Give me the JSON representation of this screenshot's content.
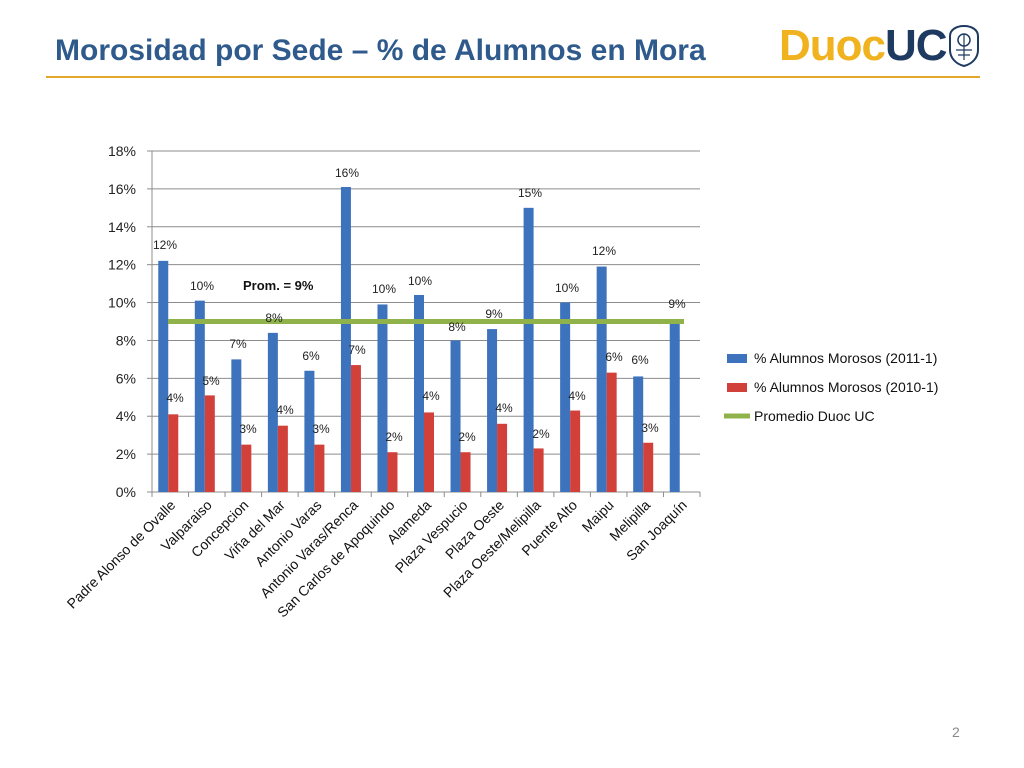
{
  "slide": {
    "title": "Morosidad por Sede – % de Alumnos en Mora",
    "logo_text_a": "Duoc",
    "logo_text_b": "UC",
    "page_number": "2"
  },
  "colors": {
    "title": "#2f5a8c",
    "rule": "#e3a82b",
    "series_2011": "#3d72bc",
    "series_2010": "#d2403a",
    "average": "#8fb34a",
    "logo_yellow": "#f0b21f",
    "logo_navy": "#1f3a60"
  },
  "chart_data": {
    "type": "bar",
    "categories": [
      "Padre Alonso de Ovalle",
      "Valparaiso",
      "Concepcion",
      "Viña del Mar",
      "Antonio Varas",
      "Antonio Varas/Renca",
      "San Carlos de Apoquindo",
      "Alameda",
      "Plaza Vespucio",
      "Plaza Oeste",
      "Plaza Oeste/Melipilla",
      "Puente Alto",
      "Maipu",
      "Melipilla",
      "San Joaquín"
    ],
    "series": [
      {
        "name": "% Alumnos Morosos (2011-1)",
        "values": [
          12.2,
          10.1,
          7.0,
          8.4,
          6.4,
          16.1,
          9.9,
          10.4,
          8.0,
          8.6,
          15.0,
          10.0,
          11.9,
          6.1,
          8.9
        ],
        "labels": [
          "12%",
          "10%",
          "7%",
          "8%",
          "6%",
          "16%",
          "10%",
          "10%",
          "8%",
          "9%",
          "15%",
          "10%",
          "12%",
          "6%",
          "9%"
        ]
      },
      {
        "name": "% Alumnos Morosos (2010-1)",
        "values": [
          4.1,
          5.1,
          2.5,
          3.5,
          2.5,
          6.7,
          2.1,
          4.2,
          2.1,
          3.6,
          2.3,
          4.3,
          6.3,
          2.6,
          null
        ],
        "labels": [
          "4%",
          "5%",
          "3%",
          "4%",
          "3%",
          "7%",
          "2%",
          "4%",
          "2%",
          "4%",
          "2%",
          "4%",
          "6%",
          "3%",
          ""
        ]
      }
    ],
    "average_line": {
      "name": "Promedio Duoc UC",
      "value": 9,
      "annotation": "Prom. = 9%"
    },
    "ylim": [
      0,
      18
    ],
    "y_ticks": [
      0,
      2,
      4,
      6,
      8,
      10,
      12,
      14,
      16,
      18
    ],
    "y_tick_labels": [
      "0%",
      "2%",
      "4%",
      "6%",
      "8%",
      "10%",
      "12%",
      "14%",
      "16%",
      "18%"
    ],
    "grid": true,
    "legend_position": "right",
    "title": "",
    "xlabel": "",
    "ylabel": ""
  }
}
